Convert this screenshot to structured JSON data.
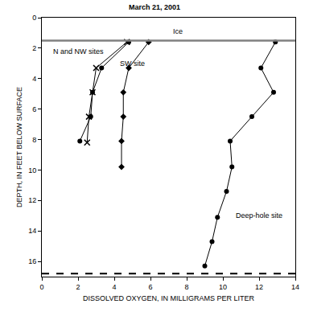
{
  "chart_data": {
    "type": "scatter",
    "title": "March 21, 2001",
    "x_label": "DISSOLVED OXYGEN, IN MILLIGRAMS PER LITER",
    "y_label": "DEPTH, IN FEET BELOW SURFACE",
    "xlim": [
      0,
      14
    ],
    "xticks": [
      0,
      2,
      4,
      6,
      8,
      10,
      12,
      14
    ],
    "ylim": [
      17,
      0
    ],
    "yticks": [
      0,
      2,
      4,
      6,
      8,
      10,
      12,
      14,
      16
    ],
    "grid": false,
    "series": [
      {
        "color": "#000000",
        "marker": "circle",
        "line_style": "solid",
        "x": [
          4.8,
          3.3,
          2.8,
          2.7,
          2.1
        ],
        "values": [
          1.6,
          3.3,
          4.9,
          6.5,
          8.1
        ]
      },
      {
        "color": "#000000",
        "marker": "x",
        "line_style": "solid",
        "x": [
          4.7,
          3.0,
          2.8,
          2.6,
          2.5
        ],
        "values": [
          1.6,
          3.3,
          4.9,
          6.5,
          8.2
        ]
      },
      {
        "color": "#000000",
        "marker": "diamond",
        "line_style": "solid",
        "x": [
          5.9,
          4.8,
          4.5,
          4.5,
          4.4,
          4.4
        ],
        "values": [
          1.6,
          3.3,
          4.9,
          6.5,
          8.1,
          9.8
        ]
      },
      {
        "color": "#000000",
        "marker": "circle",
        "line_style": "solid",
        "x": [
          12.9,
          12.1,
          12.8,
          11.6,
          10.4,
          10.5,
          10.2,
          9.7,
          9.4,
          9.0
        ],
        "values": [
          1.6,
          3.3,
          4.9,
          6.5,
          8.1,
          9.8,
          11.4,
          13.1,
          14.7,
          16.3
        ]
      }
    ],
    "reference_lines": [
      {
        "y": 1.5,
        "color": "#808080",
        "line_style": "solid"
      },
      {
        "y": 16.8,
        "color": "#000000",
        "line_style": "dashed"
      }
    ],
    "annotations": [
      {
        "text": "Ice",
        "x": 7.5,
        "y": 0.9
      },
      {
        "text": "N and NW sites",
        "x": 2.0,
        "y": 2.2
      },
      {
        "text": "SW site",
        "x": 5.0,
        "y": 3.0
      },
      {
        "text": "Deep-hole site",
        "x": 12.0,
        "y": 13.0
      }
    ]
  }
}
